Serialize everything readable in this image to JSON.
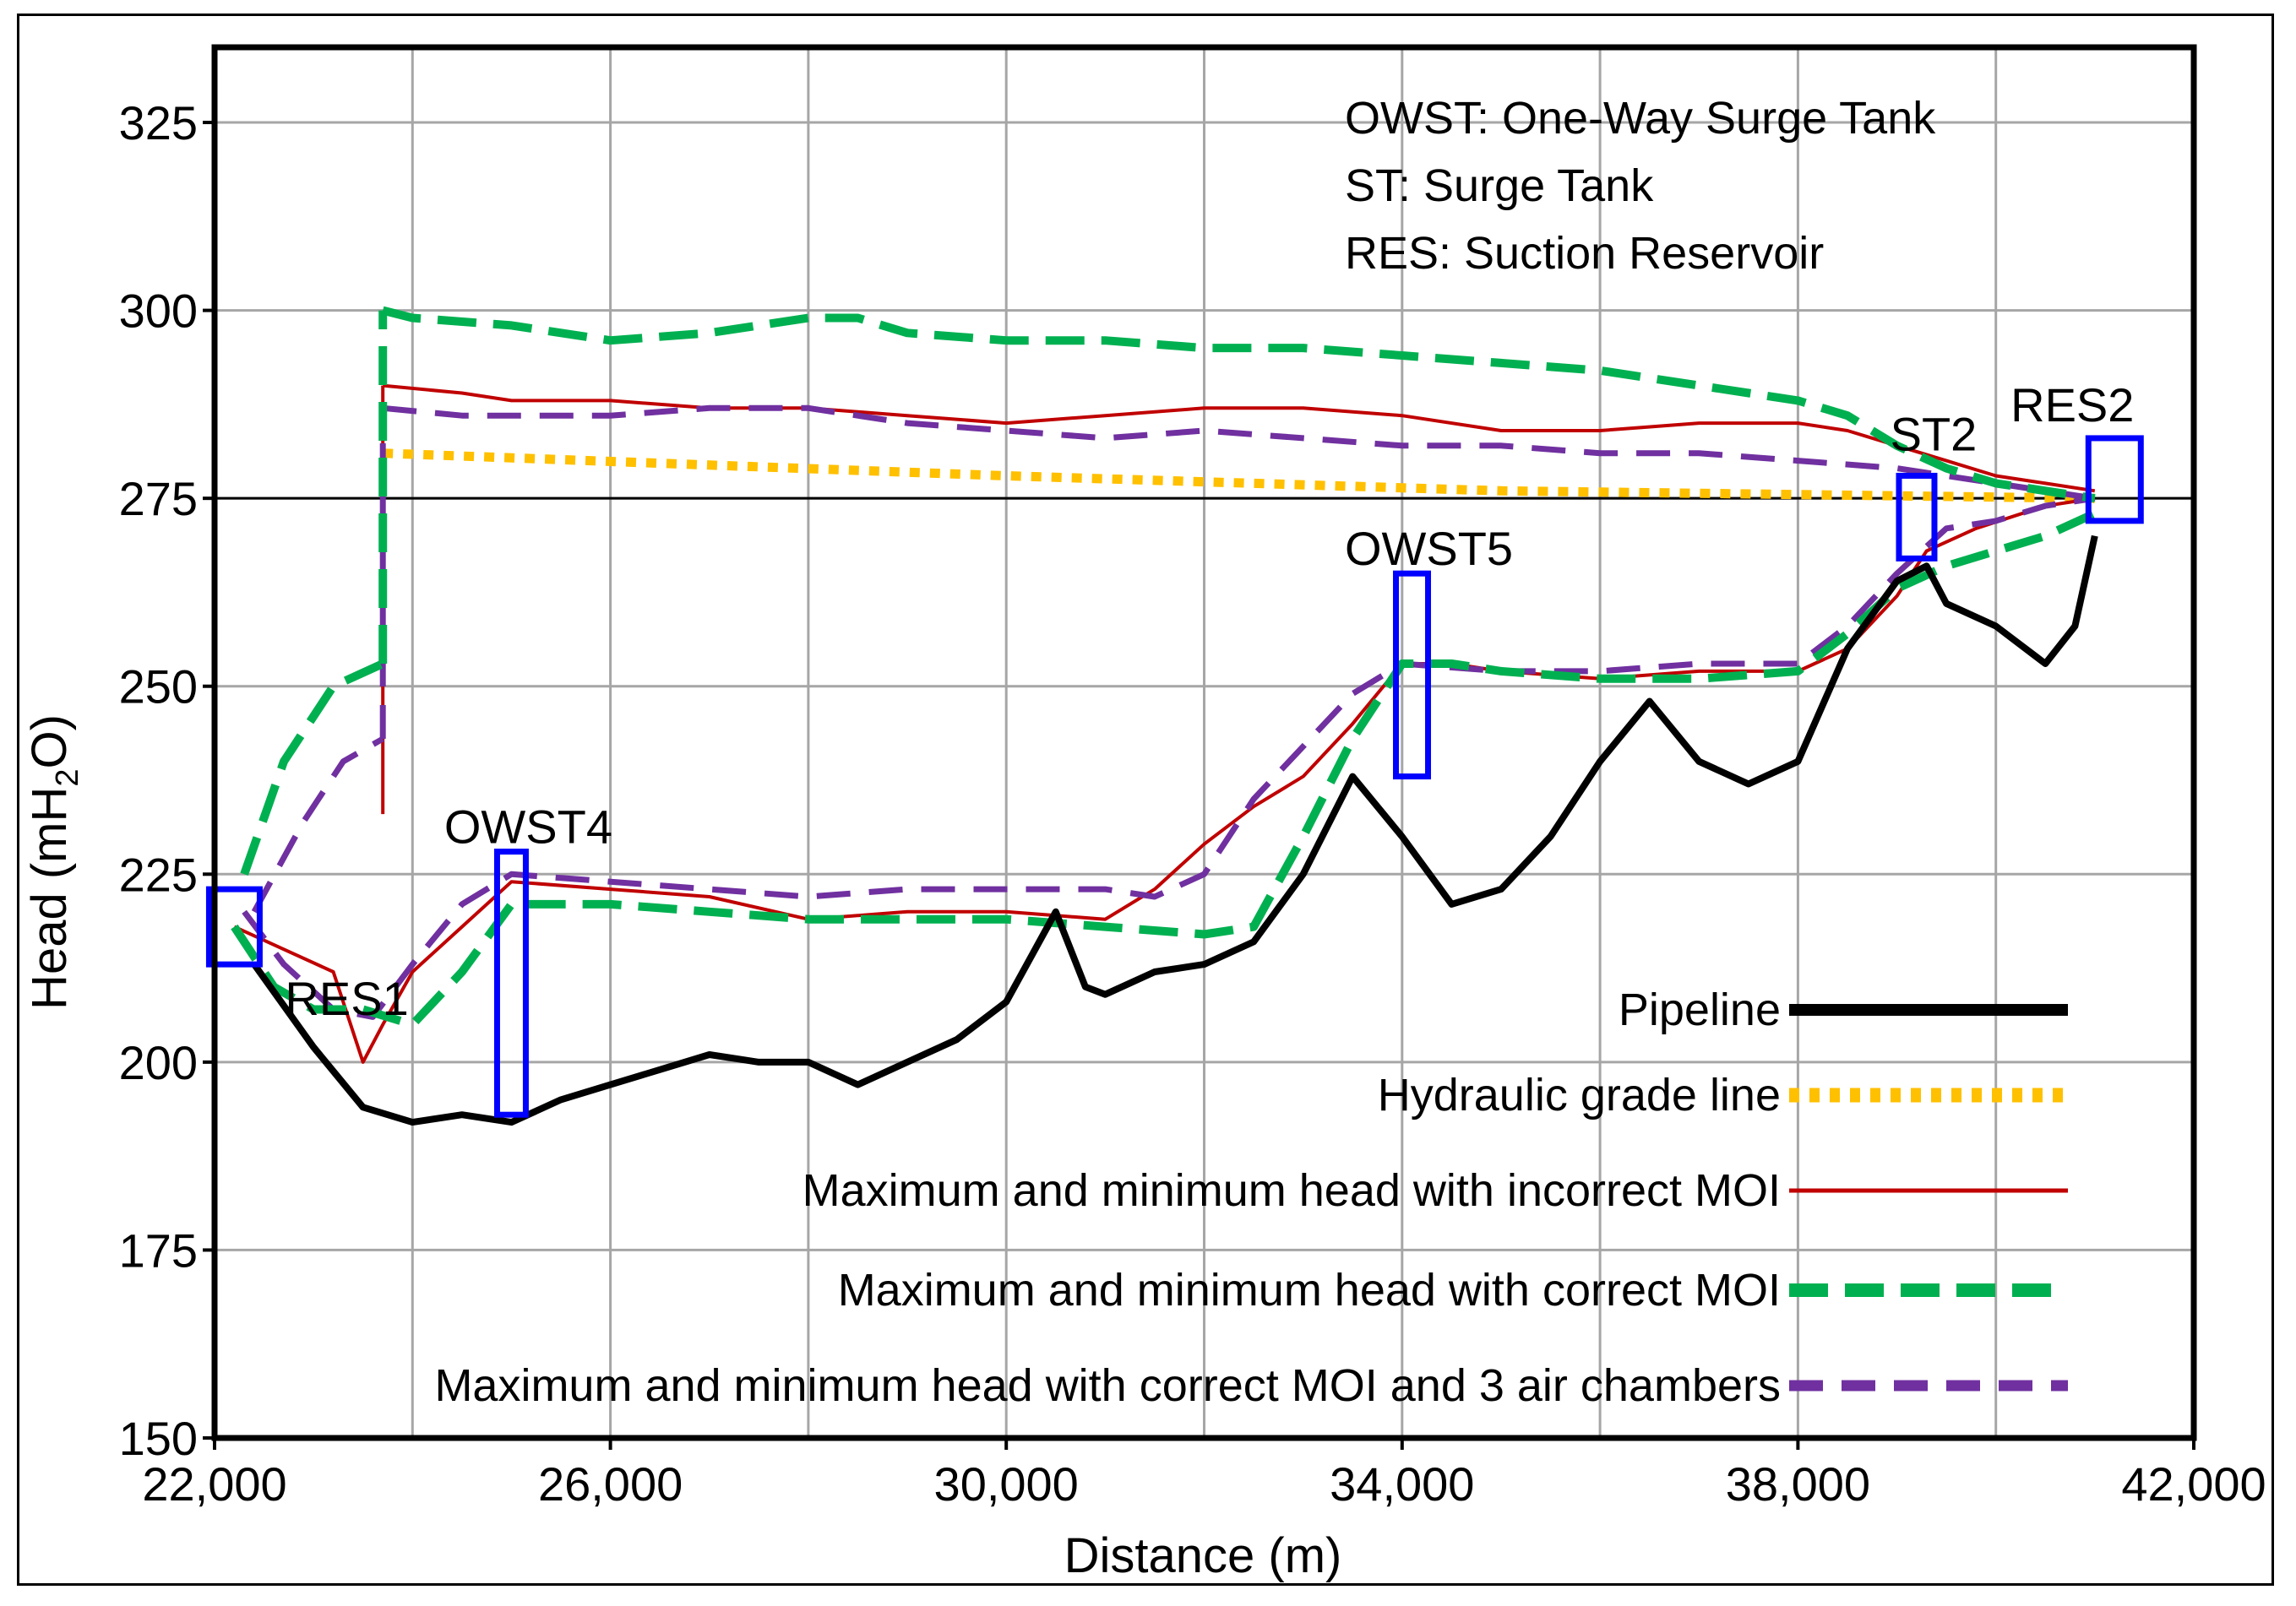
{
  "chart_data": {
    "type": "line",
    "xlabel": "Distance (m)",
    "ylabel_main": "Head (mH",
    "ylabel_sub": "2",
    "ylabel_tail": "O)",
    "xlim": [
      22000,
      42000
    ],
    "ylim": [
      150,
      335
    ],
    "x_ticks": [
      22000,
      26000,
      30000,
      34000,
      38000,
      42000
    ],
    "x_tick_labels": [
      "22,000",
      "26,000",
      "30,000",
      "34,000",
      "38,000",
      "42,000"
    ],
    "y_ticks": [
      150,
      175,
      200,
      225,
      250,
      275,
      300,
      325
    ],
    "y_tick_labels": [
      "150",
      "175",
      "200",
      "225",
      "250",
      "275",
      "300",
      "325"
    ],
    "grid": true,
    "reference_line": 275,
    "abbreviations": [
      "OWST: One-Way Surge Tank",
      "ST: Surge Tank",
      "RES: Suction Reservoir"
    ],
    "legend": [
      {
        "key": "pipeline",
        "label": "Pipeline"
      },
      {
        "key": "hgl",
        "label": "Hydraulic grade line"
      },
      {
        "key": "incorrect",
        "label": "Maximum and minimum head with incorrect MOI"
      },
      {
        "key": "correct",
        "label": "Maximum and minimum head with correct MOI"
      },
      {
        "key": "air",
        "label": "Maximum and minimum head with correct MOI and 3 air chambers"
      }
    ],
    "colors": {
      "pipeline": "#000000",
      "hgl": "#FFC000",
      "incorrect": "#C00000",
      "correct": "#00B050",
      "air": "#7030A0",
      "structure": "#0000FF",
      "grid": "#A6A6A6"
    },
    "structures": [
      {
        "name": "RES1",
        "x": 22200,
        "ymin": 213,
        "ymax": 223
      },
      {
        "name": "OWST4",
        "x": 25000,
        "ymin": 193,
        "ymax": 228
      },
      {
        "name": "OWST5",
        "x": 34100,
        "ymin": 238,
        "ymax": 265
      },
      {
        "name": "ST2",
        "x": 39200,
        "ymin": 267,
        "ymax": 278
      },
      {
        "name": "RES2",
        "x": 41200,
        "ymin": 272,
        "ymax": 283
      }
    ],
    "series": [
      {
        "key": "pipeline",
        "name": "Pipeline",
        "x": [
          22400,
          23000,
          23500,
          24000,
          24500,
          25000,
          25500,
          26000,
          27000,
          27500,
          28000,
          28500,
          29000,
          29500,
          30000,
          30500,
          30800,
          31000,
          31500,
          32000,
          32500,
          33000,
          33500,
          34000,
          34500,
          35000,
          35500,
          36000,
          36500,
          37000,
          37500,
          38000,
          38500,
          39000,
          39300,
          39500,
          40000,
          40500,
          40800,
          41000
        ],
        "values": [
          213,
          202,
          194,
          192,
          193,
          192,
          195,
          197,
          201,
          200,
          200,
          197,
          200,
          203,
          208,
          220,
          210,
          209,
          212,
          213,
          216,
          225,
          238,
          230,
          221,
          223,
          230,
          240,
          248,
          240,
          237,
          240,
          255,
          264,
          266,
          261,
          258,
          253,
          258,
          270
        ]
      },
      {
        "key": "hgl",
        "name": "Hydraulic grade line",
        "x": [
          23700,
          30000,
          35000,
          38000,
          41000
        ],
        "values": [
          281,
          278,
          276,
          275.5,
          275
        ]
      },
      {
        "key": "incorrect",
        "name": "Max with incorrect MOI",
        "x": [
          23700,
          24500,
          25000,
          26000,
          27000,
          28000,
          29000,
          30000,
          31000,
          32000,
          33000,
          34000,
          35000,
          36000,
          37000,
          38000,
          38500,
          39000,
          39500,
          40000,
          40500,
          41000
        ],
        "values": [
          290,
          289,
          288,
          288,
          287,
          287,
          286,
          285,
          286,
          287,
          287,
          286,
          284,
          284,
          285,
          285,
          284,
          282,
          280,
          278,
          277,
          276
        ]
      },
      {
        "key": "incorrect",
        "name": "Min with incorrect MOI",
        "x": [
          22200,
          22700,
          23200,
          23500,
          23700,
          24000,
          24500,
          25000,
          26000,
          27000,
          28000,
          29000,
          30000,
          31000,
          31500,
          32000,
          32500,
          33000,
          33500,
          34000,
          34500,
          35000,
          36000,
          37000,
          38000,
          38500,
          39000,
          39300,
          39800,
          40500,
          41000
        ],
        "values": [
          218,
          215,
          212,
          200,
          205,
          212,
          218,
          224,
          223,
          222,
          219,
          220,
          220,
          219,
          223,
          229,
          234,
          238,
          245,
          253,
          253,
          252,
          251,
          252,
          252,
          255,
          262,
          268,
          271,
          274,
          275
        ]
      },
      {
        "key": "incorrect",
        "name": "Incorrect MOI vertical at 23,700 m",
        "x": [
          23700,
          23700
        ],
        "values": [
          233,
          290
        ]
      },
      {
        "key": "correct",
        "name": "Max with correct MOI",
        "x": [
          23700,
          24000,
          25000,
          26000,
          27000,
          28000,
          28500,
          29000,
          30000,
          31000,
          32000,
          33000,
          34000,
          35000,
          36000,
          37000,
          38000,
          38500,
          39000,
          39500,
          40000,
          40500,
          41000
        ],
        "values": [
          300,
          299,
          298,
          296,
          297,
          299,
          299,
          297,
          296,
          296,
          295,
          295,
          294,
          293,
          292,
          290,
          288,
          286,
          282,
          279,
          277,
          276,
          275
        ]
      },
      {
        "key": "correct",
        "name": "Min with correct MOI",
        "x": [
          22200,
          22600,
          23000,
          23500,
          24000,
          24500,
          25000,
          26000,
          27000,
          28000,
          29000,
          30000,
          31000,
          32000,
          32500,
          33000,
          33500,
          34000,
          34500,
          35000,
          36000,
          37000,
          38000,
          38500,
          39000,
          39500,
          40000,
          40500,
          41000
        ],
        "values": [
          218,
          210,
          207,
          207,
          205,
          212,
          221,
          221,
          220,
          219,
          219,
          219,
          218,
          217,
          218,
          230,
          243,
          253,
          253,
          252,
          251,
          251,
          252,
          257,
          263,
          266,
          268,
          270,
          273
        ]
      },
      {
        "key": "correct",
        "name": "Correct MOI rise near RES1",
        "x": [
          22300,
          22700,
          23200,
          23700
        ],
        "values": [
          225,
          240,
          250,
          253
        ]
      },
      {
        "key": "correct",
        "name": "Correct MOI vertical at 23,700 m",
        "x": [
          23700,
          23700
        ],
        "values": [
          253,
          300
        ]
      },
      {
        "key": "air",
        "name": "Max with 3 air chambers",
        "x": [
          23700,
          24500,
          25000,
          26000,
          27000,
          28000,
          29000,
          30000,
          31000,
          32000,
          33000,
          34000,
          35000,
          36000,
          37000,
          38000,
          39000,
          39500,
          40000,
          40500,
          41000
        ],
        "values": [
          287,
          286,
          286,
          286,
          287,
          287,
          285,
          284,
          283,
          284,
          283,
          282,
          282,
          281,
          281,
          280,
          279,
          278,
          277,
          276,
          275
        ]
      },
      {
        "key": "air",
        "name": "Min with 3 air chambers",
        "x": [
          22300,
          22700,
          23200,
          23600,
          24000,
          24500,
          25000,
          26000,
          27000,
          28000,
          29000,
          30000,
          31000,
          31500,
          32000,
          32500,
          33000,
          33500,
          34000,
          35000,
          36000,
          37000,
          38000,
          38500,
          39000,
          39500,
          40000,
          40500,
          41000
        ],
        "values": [
          220,
          213,
          207,
          206,
          213,
          221,
          225,
          224,
          223,
          222,
          223,
          223,
          223,
          222,
          225,
          235,
          242,
          249,
          253,
          252,
          252,
          253,
          253,
          258,
          265,
          271,
          272,
          274,
          275
        ]
      },
      {
        "key": "air",
        "name": "Air chamber rise near RES1",
        "x": [
          22400,
          22900,
          23300,
          23700
        ],
        "values": [
          220,
          232,
          240,
          243
        ]
      },
      {
        "key": "air",
        "name": "Air chamber vertical at 23,700 m",
        "x": [
          23700,
          23700
        ],
        "values": [
          243,
          287
        ]
      }
    ]
  }
}
